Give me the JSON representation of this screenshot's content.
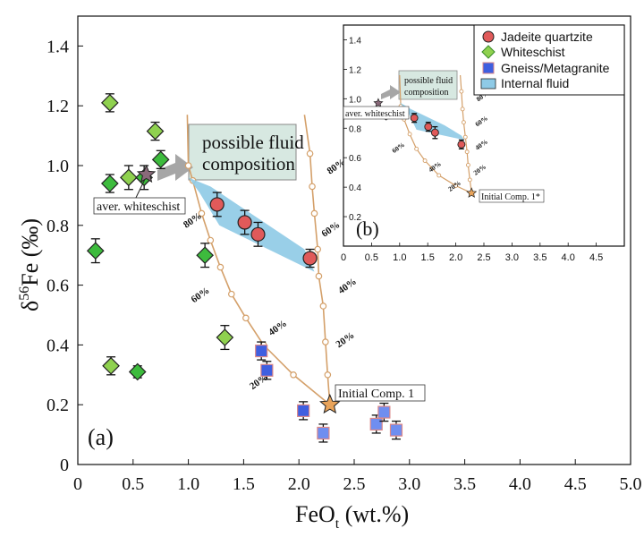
{
  "chart_data": [
    {
      "panel_label": "(a)",
      "type": "scatter",
      "xlabel_main": "FeO",
      "xlabel_sub": "t",
      "xlabel_unit": " (wt.%)",
      "ylabel_main": "δ",
      "ylabel_sup": "56",
      "ylabel_unit": "Fe (‰)",
      "xlim": [
        0,
        5.0
      ],
      "ylim": [
        0,
        1.5
      ],
      "xticks": [
        0,
        0.5,
        1.0,
        1.5,
        2.0,
        2.5,
        3.0,
        3.5,
        4.0,
        4.5,
        5.0
      ],
      "xtick_labels": [
        "0",
        "0.5",
        "1.0",
        "1.5",
        "2.0",
        "2.5",
        "3.0",
        "3.5",
        "4.0",
        "4.5",
        "5.0"
      ],
      "yticks": [
        0,
        0.2,
        0.4,
        0.6,
        0.8,
        1.0,
        1.2,
        1.4
      ],
      "ytick_labels": [
        "0",
        "0.2",
        "0.4",
        "0.6",
        "0.8",
        "1.0",
        "1.2",
        "1.4"
      ],
      "series": [
        {
          "name": "Jadeite quartzite",
          "marker": "circle",
          "color": "#e05a5a",
          "points": [
            {
              "x": 1.26,
              "y": 0.87,
              "err": 0.04
            },
            {
              "x": 1.51,
              "y": 0.81,
              "err": 0.04
            },
            {
              "x": 1.63,
              "y": 0.77,
              "err": 0.04
            },
            {
              "x": 2.1,
              "y": 0.69,
              "err": 0.03
            }
          ]
        },
        {
          "name": "Whiteschist",
          "marker": "diamond",
          "points": [
            {
              "x": 0.29,
              "y": 1.21,
              "err": 0.03,
              "color": "#8fd14f"
            },
            {
              "x": 0.7,
              "y": 1.115,
              "err": 0.03,
              "color": "#8fd14f"
            },
            {
              "x": 0.29,
              "y": 0.94,
              "err": 0.03,
              "color": "#3dbb3d"
            },
            {
              "x": 0.46,
              "y": 0.96,
              "err": 0.04,
              "color": "#8fd14f"
            },
            {
              "x": 0.6,
              "y": 0.96,
              "err": 0.04,
              "color": "#3dbb3d"
            },
            {
              "x": 0.75,
              "y": 1.02,
              "err": 0.03,
              "color": "#3dbb3d"
            },
            {
              "x": 0.16,
              "y": 0.715,
              "err": 0.04,
              "color": "#3dbb3d"
            },
            {
              "x": 1.15,
              "y": 0.7,
              "err": 0.04,
              "color": "#3dbb3d"
            },
            {
              "x": 1.33,
              "y": 0.425,
              "err": 0.04,
              "color": "#8fd14f"
            },
            {
              "x": 0.3,
              "y": 0.33,
              "err": 0.03,
              "color": "#8fd14f"
            },
            {
              "x": 0.54,
              "y": 0.31,
              "err": 0.02,
              "color": "#3dbb3d"
            }
          ]
        },
        {
          "name": "Gneiss/Metagranite",
          "marker": "square",
          "points": [
            {
              "x": 1.66,
              "y": 0.38,
              "err": 0.03,
              "color": "#3f5fe0"
            },
            {
              "x": 1.71,
              "y": 0.315,
              "err": 0.03,
              "color": "#3f5fe0"
            },
            {
              "x": 2.04,
              "y": 0.18,
              "err": 0.03,
              "color": "#3f5fe0"
            },
            {
              "x": 2.22,
              "y": 0.105,
              "err": 0.03,
              "color": "#6f8ef0"
            },
            {
              "x": 2.7,
              "y": 0.135,
              "err": 0.03,
              "color": "#6f8ef0"
            },
            {
              "x": 2.77,
              "y": 0.175,
              "err": 0.03,
              "color": "#6f8ef0"
            },
            {
              "x": 2.88,
              "y": 0.115,
              "err": 0.03,
              "color": "#6f8ef0"
            }
          ]
        }
      ],
      "legend_internal_fluid": "Internal fluid",
      "internal_fluid_polygon": [
        [
          1.0,
          0.95
        ],
        [
          2.14,
          0.64
        ],
        [
          2.14,
          0.68
        ],
        [
          1.1,
          0.935
        ]
      ],
      "internal_fluid_band": [
        [
          1.0,
          0.96
        ],
        [
          1.2,
          0.93
        ],
        [
          2.05,
          0.72
        ],
        [
          2.14,
          0.645
        ],
        [
          1.28,
          0.8
        ],
        [
          1.1,
          0.91
        ]
      ],
      "aver_whiteschist": {
        "x": 0.62,
        "y": 0.97,
        "label": "aver. whiteschist"
      },
      "initial_comp": {
        "x": 2.28,
        "y": 0.2,
        "label": "Initial Comp. 1"
      },
      "fluid_box_label_line1": "possible fluid",
      "fluid_box_label_line2": "composition",
      "curve_left": [
        [
          2.28,
          0.2
        ],
        [
          1.95,
          0.3
        ],
        [
          1.68,
          0.4
        ],
        [
          1.52,
          0.49
        ],
        [
          1.39,
          0.57
        ],
        [
          1.29,
          0.66
        ],
        [
          1.2,
          0.75
        ],
        [
          1.12,
          0.84
        ],
        [
          1.04,
          0.95
        ],
        [
          1.0,
          1.0
        ],
        [
          0.99,
          1.17
        ]
      ],
      "curve_right": [
        [
          2.28,
          0.2
        ],
        [
          2.26,
          0.3
        ],
        [
          2.24,
          0.41
        ],
        [
          2.22,
          0.53
        ],
        [
          2.18,
          0.63
        ],
        [
          2.17,
          0.72
        ],
        [
          2.14,
          0.84
        ],
        [
          2.12,
          0.93
        ],
        [
          2.1,
          1.04
        ],
        [
          2.05,
          1.17
        ]
      ],
      "curve_labels_left": [
        {
          "text": "20%",
          "x": 1.58,
          "y": 0.25
        },
        {
          "text": "40%",
          "x": 1.75,
          "y": 0.43
        },
        {
          "text": "60%",
          "x": 1.05,
          "y": 0.54
        },
        {
          "text": "80%",
          "x": 0.98,
          "y": 0.79
        }
      ],
      "curve_labels_right": [
        {
          "text": "20%",
          "x": 2.36,
          "y": 0.39
        },
        {
          "text": "40%",
          "x": 2.38,
          "y": 0.57
        },
        {
          "text": "60%",
          "x": 2.23,
          "y": 0.76
        },
        {
          "text": "80%",
          "x": 2.28,
          "y": 0.97
        }
      ]
    },
    {
      "panel_label": "(b)",
      "type": "scatter",
      "xlim": [
        0,
        5.0
      ],
      "ylim": [
        0,
        1.5
      ],
      "xticks": [
        0,
        0.5,
        1.0,
        1.5,
        2.0,
        2.5,
        3.0,
        3.5,
        4.0,
        4.5
      ],
      "xtick_labels": [
        "0",
        "0.5",
        "1.0",
        "1.5",
        "2.0",
        "2.5",
        "3.0",
        "3.5",
        "4.0",
        "4.5"
      ],
      "yticks": [
        0.2,
        0.4,
        0.6,
        0.8,
        1.0,
        1.2,
        1.4
      ],
      "ytick_labels": [
        "0.2",
        "0.4",
        "0.6",
        "0.8",
        "1.0",
        "1.2",
        "1.4"
      ],
      "jadeite_points": [
        {
          "x": 1.26,
          "y": 0.87,
          "err": 0.03
        },
        {
          "x": 1.51,
          "y": 0.81,
          "err": 0.03
        },
        {
          "x": 1.63,
          "y": 0.77,
          "err": 0.04
        },
        {
          "x": 2.1,
          "y": 0.69,
          "err": 0.03
        }
      ],
      "aver_whiteschist": {
        "x": 0.62,
        "y": 0.97,
        "label": "aver. whiteschist"
      },
      "initial_comp": {
        "x": 2.28,
        "y": 0.36,
        "label": "Initial Comp. 1*"
      },
      "fluid_box_label_line1": "possible fluid",
      "fluid_box_label_line2": "composition",
      "band": [
        [
          1.0,
          0.975
        ],
        [
          1.2,
          0.93
        ],
        [
          1.8,
          0.82
        ],
        [
          2.1,
          0.75
        ],
        [
          2.15,
          0.72
        ],
        [
          1.3,
          0.79
        ],
        [
          1.15,
          0.91
        ]
      ],
      "curve_left": [
        [
          2.28,
          0.36
        ],
        [
          2.0,
          0.41
        ],
        [
          1.7,
          0.48
        ],
        [
          1.45,
          0.58
        ],
        [
          1.3,
          0.66
        ],
        [
          1.18,
          0.76
        ],
        [
          1.08,
          0.86
        ],
        [
          1.02,
          0.95
        ],
        [
          1.0,
          1.16
        ]
      ],
      "curve_right": [
        [
          2.28,
          0.36
        ],
        [
          2.25,
          0.45
        ],
        [
          2.22,
          0.55
        ],
        [
          2.2,
          0.64
        ],
        [
          2.17,
          0.74
        ],
        [
          2.14,
          0.84
        ],
        [
          2.12,
          0.93
        ],
        [
          2.1,
          1.05
        ],
        [
          2.08,
          1.16
        ]
      ],
      "curve_labels": [
        {
          "text": "20%",
          "x": 1.9,
          "y": 0.37
        },
        {
          "text": "40%",
          "x": 1.55,
          "y": 0.5
        },
        {
          "text": "60%",
          "x": 0.9,
          "y": 0.63
        },
        {
          "text": "80%",
          "x": 0.75,
          "y": 0.85
        },
        {
          "text": "20%",
          "x": 2.35,
          "y": 0.48
        },
        {
          "text": "40%",
          "x": 2.38,
          "y": 0.65
        },
        {
          "text": "60%",
          "x": 2.38,
          "y": 0.81
        },
        {
          "text": "80%",
          "x": 2.4,
          "y": 0.98
        }
      ]
    }
  ],
  "colors": {
    "curve": "#d4a06a",
    "band": "#8ecae6",
    "fluid_box": "#d7e8e1",
    "arrow": "#a6a6a6",
    "star_main": "#e8a35a",
    "star_whiteschist": "#8a6a7a"
  }
}
